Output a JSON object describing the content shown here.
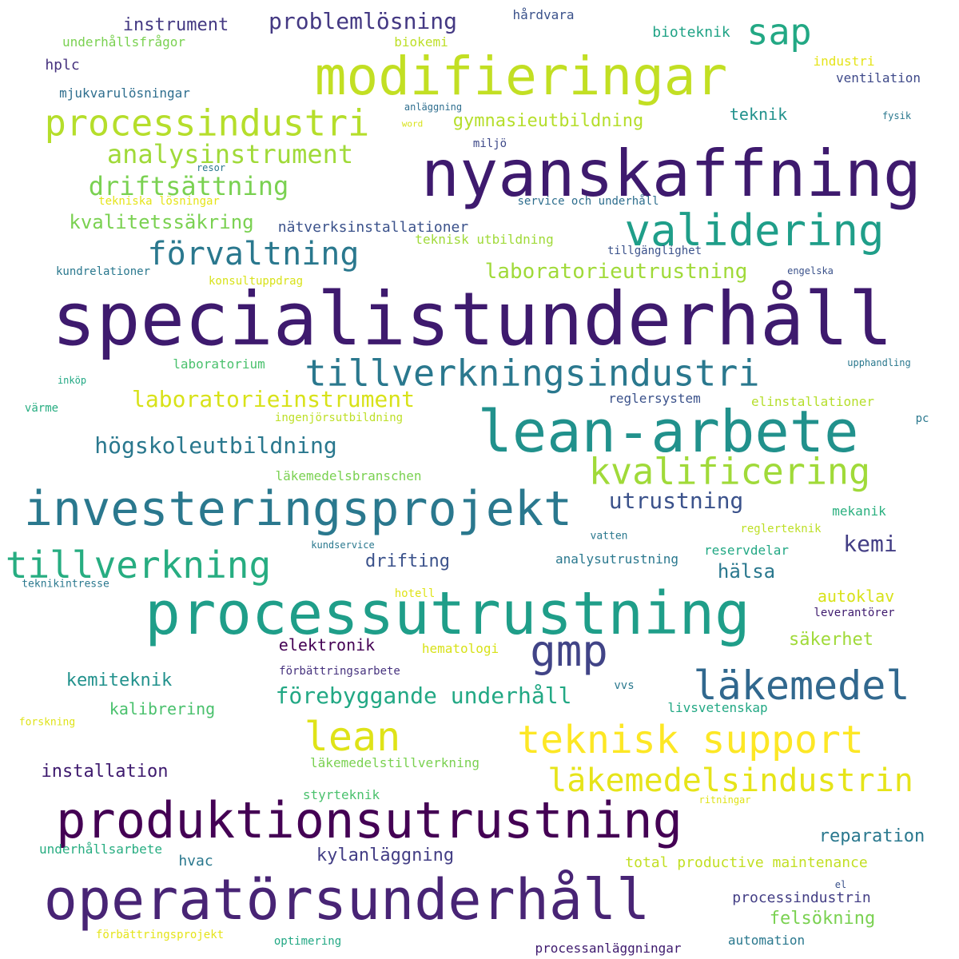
{
  "words": [
    {
      "text": "specialistunderhåll",
      "color": "#3e1a6e"
    },
    {
      "text": "nyanskaffning",
      "color": "#3e1a6e"
    },
    {
      "text": "processutrustning",
      "color": "#1f9e89"
    },
    {
      "text": "lean-arbete",
      "color": "#21918c"
    },
    {
      "text": "investeringsprojekt",
      "color": "#2a788e"
    },
    {
      "text": "produktionsutrustning",
      "color": "#440154"
    },
    {
      "text": "operatörsunderhåll",
      "color": "#482475"
    },
    {
      "text": "modifieringar",
      "color": "#c2df23"
    },
    {
      "text": "validering",
      "color": "#1f9e89"
    },
    {
      "text": "tillverkningsindustri",
      "color": "#2a788e"
    },
    {
      "text": "processindustri",
      "color": "#b5de2b"
    },
    {
      "text": "teknisk support",
      "color": "#fde725"
    },
    {
      "text": "läkemedel",
      "color": "#31688e"
    },
    {
      "text": "gmp",
      "color": "#414487"
    },
    {
      "text": "tillverkning",
      "color": "#27ad81"
    },
    {
      "text": "kvalificering",
      "color": "#a0da39"
    },
    {
      "text": "lean",
      "color": "#dfe318"
    },
    {
      "text": "läkemedelsindustrin",
      "color": "#e6e419"
    },
    {
      "text": "analysinstrument",
      "color": "#a0da39"
    },
    {
      "text": "förvaltning",
      "color": "#2a788e"
    },
    {
      "text": "sap",
      "color": "#22a884"
    },
    {
      "text": "driftsättning",
      "color": "#7ad151"
    },
    {
      "text": "högskoleutbildning",
      "color": "#2a788e"
    },
    {
      "text": "laboratorieinstrument",
      "color": "#d8e219"
    },
    {
      "text": "utrustning",
      "color": "#3b528b"
    },
    {
      "text": "förebyggande underhåll",
      "color": "#22a884"
    },
    {
      "text": "problemlösning",
      "color": "#443983"
    },
    {
      "text": "laboratorieutrustning",
      "color": "#a0da39"
    },
    {
      "text": "kvalitetssäkring",
      "color": "#7ad151"
    },
    {
      "text": "kemi",
      "color": "#433e85"
    },
    {
      "text": "hälsa",
      "color": "#2a788e"
    },
    {
      "text": "installation",
      "color": "#3e1a6e"
    },
    {
      "text": "kylanläggning",
      "color": "#433e85"
    },
    {
      "text": "reparation",
      "color": "#2a788e"
    },
    {
      "text": "instrument",
      "color": "#443983"
    },
    {
      "text": "gymnasieutbildning",
      "color": "#b5de2b"
    },
    {
      "text": "kemiteknik",
      "color": "#21918c"
    },
    {
      "text": "drifting",
      "color": "#3b528b"
    },
    {
      "text": "elektronik",
      "color": "#440154"
    },
    {
      "text": "säkerhet",
      "color": "#a0da39"
    },
    {
      "text": "felsökning",
      "color": "#7ad151"
    },
    {
      "text": "kalibrering",
      "color": "#4ac16d"
    },
    {
      "text": "autoklav",
      "color": "#d8e219"
    },
    {
      "text": "teknik",
      "color": "#21918c"
    },
    {
      "text": "bioteknik",
      "color": "#20a386"
    },
    {
      "text": "nätverksinstallationer",
      "color": "#3b528b"
    },
    {
      "text": "hvac",
      "color": "#2a788e"
    },
    {
      "text": "total productive maintenance",
      "color": "#c2df23"
    },
    {
      "text": "processindustrin",
      "color": "#433e85"
    },
    {
      "text": "underhållsfrågor",
      "color": "#7ad151"
    },
    {
      "text": "hplc",
      "color": "#46327e"
    },
    {
      "text": "mjukvarulösningar",
      "color": "#2e6e8e"
    },
    {
      "text": "biokemi",
      "color": "#bddf26"
    },
    {
      "text": "hårdvara",
      "color": "#3b528b"
    },
    {
      "text": "industri",
      "color": "#e5e419"
    },
    {
      "text": "ventilation",
      "color": "#3e4989"
    },
    {
      "text": "miljö",
      "color": "#3e4989"
    },
    {
      "text": "teknisk utbildning",
      "color": "#a0da39"
    },
    {
      "text": "service och underhåll",
      "color": "#2e6e8e"
    },
    {
      "text": "tillgänglighet",
      "color": "#3b528b"
    },
    {
      "text": "kundrelationer",
      "color": "#2a788e"
    },
    {
      "text": "konsultuppdrag",
      "color": "#d8e219"
    },
    {
      "text": "laboratorium",
      "color": "#4ac16d"
    },
    {
      "text": "reglersystem",
      "color": "#3b528b"
    },
    {
      "text": "elinstallationer",
      "color": "#b5de2b"
    },
    {
      "text": "ingenjörsutbildning",
      "color": "#bddf26"
    },
    {
      "text": "läkemedelsbranschen",
      "color": "#7ad151"
    },
    {
      "text": "mekanik",
      "color": "#2ab07f"
    },
    {
      "text": "analysutrustning",
      "color": "#2a788e"
    },
    {
      "text": "reservdelar",
      "color": "#22a884"
    },
    {
      "text": "reglerteknik",
      "color": "#bddf26"
    },
    {
      "text": "hematologi",
      "color": "#d8e219"
    },
    {
      "text": "förbättringsarbete",
      "color": "#46327e"
    },
    {
      "text": "livsvetenskap",
      "color": "#22a884"
    },
    {
      "text": "läkemedelstillverkning",
      "color": "#7ad151"
    },
    {
      "text": "styrteknik",
      "color": "#4ac16d"
    },
    {
      "text": "underhållsarbete",
      "color": "#27ad81"
    },
    {
      "text": "automation",
      "color": "#2a788e"
    },
    {
      "text": "optimering",
      "color": "#22a884"
    },
    {
      "text": "processanläggningar",
      "color": "#3e1a6e"
    },
    {
      "text": "förbättringsprojekt",
      "color": "#e5e419"
    },
    {
      "text": "leverantörer",
      "color": "#3e1a6e"
    },
    {
      "text": "anläggning",
      "color": "#2e6e8e"
    },
    {
      "text": "word",
      "color": "#d8e219"
    },
    {
      "text": "fysik",
      "color": "#2a788e"
    },
    {
      "text": "resor",
      "color": "#2a788e"
    },
    {
      "text": "tekniska lösningar",
      "color": "#e5e419"
    },
    {
      "text": "engelska",
      "color": "#3b528b"
    },
    {
      "text": "inköp",
      "color": "#22a884"
    },
    {
      "text": "värme",
      "color": "#27ad81"
    },
    {
      "text": "upphandling",
      "color": "#2a788e"
    },
    {
      "text": "pc",
      "color": "#2a788e"
    },
    {
      "text": "vatten",
      "color": "#2a788e"
    },
    {
      "text": "kundservice",
      "color": "#2a788e"
    },
    {
      "text": "teknikintresse",
      "color": "#2a788e"
    },
    {
      "text": "hotell",
      "color": "#dfe318"
    },
    {
      "text": "vvs",
      "color": "#2a788e"
    },
    {
      "text": "forskning",
      "color": "#dfe318"
    },
    {
      "text": "ritningar",
      "color": "#dfe318"
    },
    {
      "text": "el",
      "color": "#3b528b"
    }
  ]
}
